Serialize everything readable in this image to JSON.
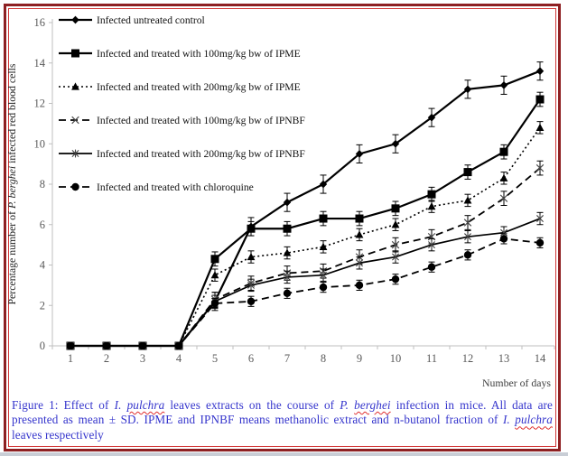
{
  "figure": {
    "caption_color": "#3434cc",
    "caption_segments": [
      {
        "text": "Figure 1: Effect of ",
        "style": "normal"
      },
      {
        "text": "I.",
        "style": "italic"
      },
      {
        "text": " ",
        "style": "normal"
      },
      {
        "text": "pulchra",
        "style": "misspelled"
      },
      {
        "text": " leaves extracts on the course of ",
        "style": "normal"
      },
      {
        "text": "P.",
        "style": "italic"
      },
      {
        "text": " ",
        "style": "normal"
      },
      {
        "text": "berghei",
        "style": "misspelled"
      },
      {
        "text": " infection in mice. All data are presented as mean ± SD. IPME and IPNBF means methanolic extract and n-butanol fraction of ",
        "style": "normal"
      },
      {
        "text": "I.",
        "style": "italic"
      },
      {
        "text": " ",
        "style": "normal"
      },
      {
        "text": "pulchra",
        "style": "misspelled"
      },
      {
        "text": " leaves respectively",
        "style": "normal"
      }
    ]
  },
  "chart_data": {
    "type": "line",
    "title": "",
    "xlabel": "Number of days",
    "ylabel": "Percentage number of P. berghei infected red blood cells",
    "ylabel_segments": [
      {
        "text": "Percentage number of ",
        "italic": false
      },
      {
        "text": "P. berghei",
        "italic": true
      },
      {
        "text": " infected red blood cells",
        "italic": false
      }
    ],
    "x": [
      1,
      2,
      3,
      4,
      5,
      6,
      7,
      8,
      9,
      10,
      11,
      12,
      13,
      14
    ],
    "yticks": [
      0,
      2,
      4,
      6,
      8,
      10,
      12,
      14,
      16
    ],
    "ylim": [
      0,
      16
    ],
    "grid": false,
    "error_bars": true,
    "legend_position": "upper-left-inside",
    "axis_color": "#bfbfbf",
    "tick_label_color": "#595959",
    "series_color": "#000000",
    "series": [
      {
        "name": "Infected untreated control",
        "marker": "diamond",
        "line_style": "solid",
        "sd": 0.45,
        "values": [
          0,
          0,
          0,
          0,
          2.2,
          5.9,
          7.1,
          8.0,
          9.5,
          10.0,
          11.3,
          12.7,
          12.9,
          13.6
        ]
      },
      {
        "name": "Infected and treated with 100mg/kg bw of IPME",
        "marker": "square",
        "line_style": "solid",
        "sd": 0.35,
        "values": [
          0,
          0,
          0,
          0,
          4.3,
          5.8,
          5.8,
          6.3,
          6.3,
          6.8,
          7.5,
          8.6,
          9.6,
          12.2
        ]
      },
      {
        "name": "Infected and treated with 200mg/kg bw of IPME",
        "marker": "triangle",
        "line_style": "dotted",
        "sd": 0.3,
        "values": [
          0,
          0,
          0,
          0,
          3.5,
          4.4,
          4.6,
          4.9,
          5.5,
          6.0,
          6.9,
          7.2,
          8.3,
          10.8
        ]
      },
      {
        "name": "Infected and treated with 100mg/kg bw of IPNBF",
        "marker": "x",
        "line_style": "dashed",
        "sd": 0.35,
        "values": [
          0,
          0,
          0,
          0,
          2.3,
          3.1,
          3.6,
          3.7,
          4.4,
          5.0,
          5.4,
          6.1,
          7.3,
          8.8
        ]
      },
      {
        "name": "Infected and treated with 200mg/kg bw of IPNBF",
        "marker": "asterisk",
        "line_style": "solid",
        "sd": 0.3,
        "values": [
          0,
          0,
          0,
          0,
          2.2,
          3.0,
          3.4,
          3.5,
          4.1,
          4.4,
          5.0,
          5.4,
          5.6,
          6.3
        ]
      },
      {
        "name": "Infected and treated with chloroquine",
        "marker": "circle",
        "line_style": "dashed",
        "sd": 0.25,
        "values": [
          0,
          0,
          0,
          0,
          2.1,
          2.2,
          2.6,
          2.9,
          3.0,
          3.3,
          3.9,
          4.5,
          5.3,
          5.1
        ]
      }
    ]
  }
}
